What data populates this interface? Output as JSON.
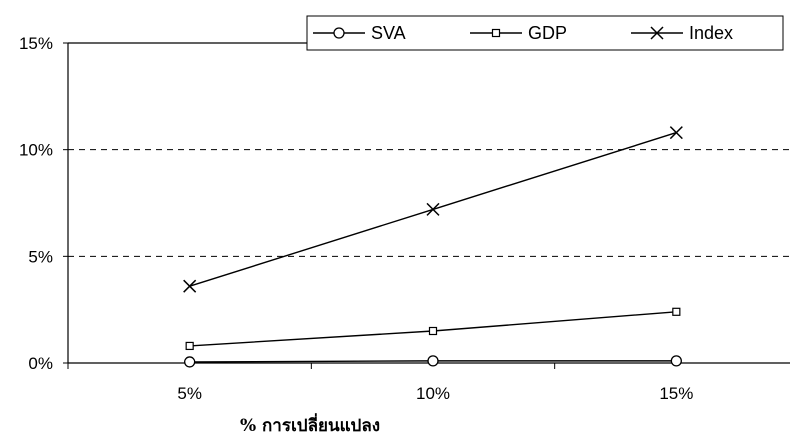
{
  "chart_data": {
    "type": "line",
    "categories": [
      "5%",
      "10%",
      "15%"
    ],
    "xlabel": "% การเปลี่ยนแปลง",
    "ylabel": "",
    "ylim": [
      0,
      15
    ],
    "yticks": [
      "0%",
      "5%",
      "10%",
      "15%"
    ],
    "grid": "horizontal dashed at 5%, 10%",
    "legend_position": "top-right",
    "series": [
      {
        "name": "SVA",
        "marker": "circle",
        "values": [
          0.05,
          0.1,
          0.1
        ]
      },
      {
        "name": "GDP",
        "marker": "square",
        "values": [
          0.8,
          1.5,
          2.4
        ]
      },
      {
        "name": "Index",
        "marker": "x",
        "values": [
          3.6,
          7.2,
          10.8
        ]
      }
    ]
  }
}
